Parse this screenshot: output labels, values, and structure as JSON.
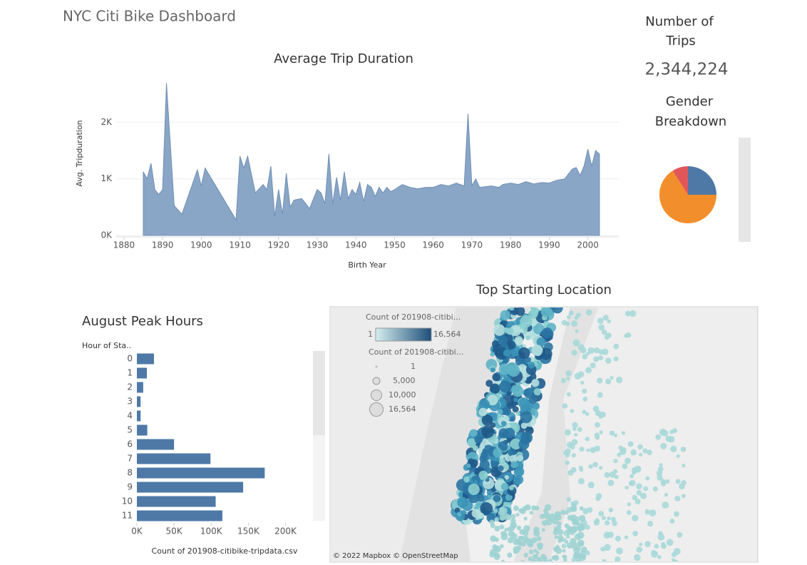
{
  "dashboard": {
    "title": "NYC Citi Bike Dashboard",
    "kpi_label_lines": [
      "Number of",
      "Trips"
    ],
    "kpi_value": "2,344,224"
  },
  "map": {
    "title": "Top Starting Location",
    "color_legend_title": "Count of 201908-citibi...",
    "color_min": "1",
    "color_max": "16,564",
    "size_legend_title": "Count of 201908-citibi...",
    "size_labels": [
      "1",
      "5,000",
      "10,000",
      "16,564"
    ],
    "credit": "© 2022 Mapbox © OpenStreetMap"
  },
  "chart_data": [
    {
      "type": "area",
      "title": "Average Trip Duration",
      "x_label": "Birth Year",
      "y_label": "Avg. Tripduration",
      "color": "#8aa6c6",
      "line_color": "#6f8fb5",
      "grid": true,
      "x": [
        1885,
        1886,
        1887,
        1888,
        1889,
        1890,
        1891,
        1893,
        1895,
        1899,
        1900,
        1901,
        1909,
        1910,
        1911,
        1912,
        1914,
        1916,
        1917,
        1918,
        1919,
        1920,
        1921,
        1922,
        1923,
        1924,
        1926,
        1928,
        1930,
        1931,
        1932,
        1933,
        1934,
        1935,
        1936,
        1937,
        1938,
        1939,
        1940,
        1941,
        1942,
        1943,
        1944,
        1945,
        1946,
        1947,
        1948,
        1949,
        1950,
        1952,
        1954,
        1956,
        1958,
        1960,
        1962,
        1964,
        1966,
        1968,
        1969,
        1970,
        1971,
        1972,
        1975,
        1977,
        1978,
        1980,
        1982,
        1984,
        1986,
        1988,
        1990,
        1992,
        1994,
        1996,
        1997,
        1998,
        1999,
        2000,
        2001,
        2002,
        2003
      ],
      "values": [
        1125,
        1000,
        1275,
        810,
        725,
        810,
        2690,
        525,
        375,
        1160,
        875,
        1190,
        275,
        1400,
        1190,
        1400,
        750,
        900,
        810,
        1225,
        340,
        810,
        375,
        1100,
        500,
        625,
        650,
        475,
        810,
        750,
        560,
        1440,
        560,
        1025,
        625,
        1125,
        650,
        810,
        725,
        935,
        600,
        900,
        850,
        690,
        850,
        750,
        850,
        775,
        810,
        900,
        850,
        825,
        850,
        850,
        900,
        875,
        925,
        875,
        2150,
        875,
        1000,
        850,
        875,
        850,
        900,
        925,
        900,
        950,
        910,
        935,
        925,
        975,
        1000,
        1175,
        1200,
        1060,
        1225,
        1525,
        1225,
        1500,
        1440
      ],
      "xlim": [
        1878,
        2008
      ],
      "xticks": [
        1880,
        1890,
        1900,
        1910,
        1920,
        1930,
        1940,
        1950,
        1960,
        1970,
        1980,
        1990,
        2000
      ],
      "ylim": [
        0,
        2900
      ],
      "yticks": [
        {
          "value": 0,
          "label": "0K"
        },
        {
          "value": 1000,
          "label": "1K"
        },
        {
          "value": 2000,
          "label": "2K"
        }
      ]
    },
    {
      "type": "pie",
      "title_lines": [
        "Gender",
        "Breakdown"
      ],
      "values": [
        25,
        66,
        9
      ],
      "colors": [
        "#4e79a7",
        "#f28e2b",
        "#e15759"
      ]
    },
    {
      "type": "hbar",
      "title": "August Peak Hours",
      "y_label": "Hour of Sta..",
      "x_label": "Count of 201908-citibike-tripdata.csv",
      "color": "#4e79a7",
      "categories": [
        "0",
        "1",
        "2",
        "3",
        "4",
        "5",
        "6",
        "7",
        "8",
        "9",
        "10",
        "11"
      ],
      "values": [
        23000,
        13500,
        8500,
        5000,
        5000,
        14000,
        50000,
        99000,
        172000,
        143000,
        106000,
        115000
      ],
      "xlim": [
        0,
        235000
      ],
      "xticks": [
        {
          "value": 0,
          "label": "0K"
        },
        {
          "value": 50000,
          "label": "50K"
        },
        {
          "value": 100000,
          "label": "100K"
        },
        {
          "value": 150000,
          "label": "150K"
        },
        {
          "value": 200000,
          "label": "200K"
        }
      ]
    }
  ]
}
